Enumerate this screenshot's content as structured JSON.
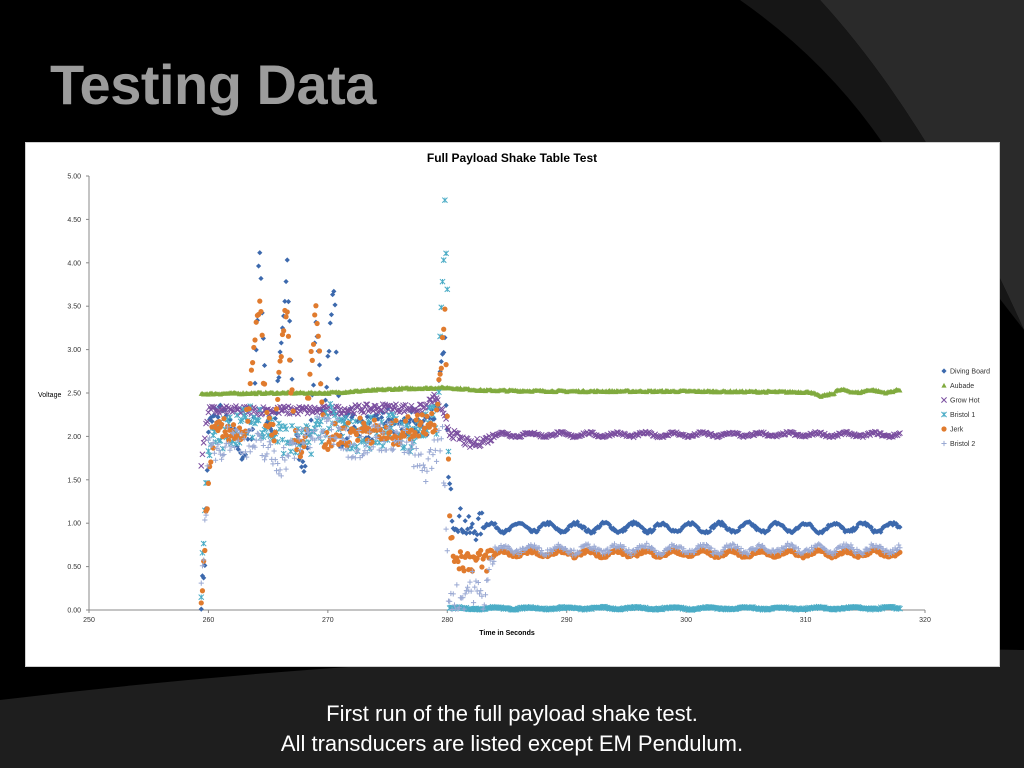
{
  "slide": {
    "title": "Testing Data",
    "caption_line1": "First run of the full payload shake test.",
    "caption_line2": "All transducers are listed except EM Pendulum."
  },
  "chart_data": {
    "type": "scatter",
    "title": "Full Payload Shake Table Test",
    "xlabel": "Time in Seconds",
    "ylabel": "Voltage",
    "xlim": [
      250,
      320
    ],
    "ylim": [
      0,
      5
    ],
    "xticks": [
      "250",
      "260",
      "270",
      "280",
      "290",
      "300",
      "310",
      "320"
    ],
    "yticks": [
      "0.00",
      "0.50",
      "1.00",
      "1.50",
      "2.00",
      "2.50",
      "3.00",
      "3.50",
      "4.00",
      "4.50",
      "5.00"
    ],
    "grid": false,
    "legend_position": "right",
    "series": [
      {
        "name": "Diving Board",
        "color": "#3c69ad",
        "marker": "diamond",
        "noise_chaotic": 0.15,
        "noise_steady": 0.02,
        "points": [
          [
            259.4,
            0.1
          ],
          [
            259.7,
            0.6
          ],
          [
            260,
            2.1
          ],
          [
            261,
            2.3
          ],
          [
            262,
            2.0
          ],
          [
            263,
            1.8
          ],
          [
            263.8,
            2.2
          ],
          [
            264.3,
            4.25
          ],
          [
            264.8,
            2.3
          ],
          [
            265.5,
            2.0
          ],
          [
            266.6,
            3.9
          ],
          [
            267.2,
            2.0
          ],
          [
            268,
            1.7
          ],
          [
            268.6,
            2.2
          ],
          [
            269,
            3.2
          ],
          [
            269.6,
            2.2
          ],
          [
            270.5,
            3.75
          ],
          [
            271,
            2.0
          ],
          [
            272,
            2.2
          ],
          [
            273,
            2.1
          ],
          [
            274,
            2.1
          ],
          [
            275,
            2.2
          ],
          [
            276,
            2.0
          ],
          [
            277,
            2.2
          ],
          [
            278,
            2.1
          ],
          [
            279,
            2.3
          ],
          [
            279.8,
            3.0
          ],
          [
            280.1,
            1.5
          ],
          [
            280.5,
            1.05
          ],
          [
            281,
            1.05
          ],
          [
            282,
            0.9
          ],
          [
            283,
            1.0
          ]
        ],
        "steady": {
          "start": 283,
          "end": 318,
          "mean": 0.95,
          "amplitude": 0.05,
          "period": 2.4
        }
      },
      {
        "name": "Aubade",
        "color": "#80aa3e",
        "marker": "triangle",
        "noise_chaotic": 0.01,
        "noise_steady": 0.01,
        "points": [
          [
            259.4,
            2.49
          ],
          [
            265,
            2.5
          ],
          [
            270,
            2.5
          ],
          [
            276,
            2.55
          ],
          [
            280,
            2.56
          ],
          [
            283,
            2.53
          ],
          [
            290,
            2.52
          ],
          [
            300,
            2.52
          ],
          [
            310.5,
            2.51
          ],
          [
            311.2,
            2.46
          ],
          [
            312.5,
            2.5
          ]
        ],
        "steady": {
          "start": 312.5,
          "end": 318,
          "mean": 2.52,
          "amplitude": 0.015,
          "period": 2.4
        }
      },
      {
        "name": "Grow Hot",
        "color": "#7a4e9f",
        "marker": "x",
        "noise_chaotic": 0.05,
        "noise_steady": 0.015,
        "points": [
          [
            259.4,
            1.7
          ],
          [
            260,
            2.3
          ],
          [
            265,
            2.3
          ],
          [
            270,
            2.3
          ],
          [
            275,
            2.33
          ],
          [
            278,
            2.32
          ],
          [
            279,
            2.45
          ],
          [
            279.8,
            2.2
          ],
          [
            280.2,
            2.05
          ],
          [
            282,
            1.9
          ],
          [
            283,
            1.95
          ],
          [
            284,
            2.0
          ]
        ],
        "steady": {
          "start": 284,
          "end": 318,
          "mean": 2.02,
          "amplitude": 0.02,
          "period": 2.4
        }
      },
      {
        "name": "Bristol 1",
        "color": "#4bacc6",
        "marker": "asterisk",
        "noise_chaotic": 0.2,
        "noise_steady": 0.01,
        "points": [
          [
            259.4,
            0.3
          ],
          [
            260,
            1.9
          ],
          [
            262,
            2.1
          ],
          [
            264.3,
            2.2
          ],
          [
            266,
            2.0
          ],
          [
            268,
            1.9
          ],
          [
            270,
            2.2
          ],
          [
            272,
            2.0
          ],
          [
            275,
            2.1
          ],
          [
            277,
            2.0
          ],
          [
            279.2,
            2.2
          ],
          [
            279.8,
            4.6
          ],
          [
            280.0,
            3.5
          ],
          [
            280.2,
            0.02
          ]
        ],
        "steady": {
          "start": 280.2,
          "end": 318,
          "mean": 0.02,
          "amplitude": 0.01,
          "period": 3
        }
      },
      {
        "name": "Jerk",
        "color": "#e07b2e",
        "marker": "circle",
        "noise_chaotic": 0.15,
        "noise_steady": 0.02,
        "points": [
          [
            259.4,
            0.1
          ],
          [
            259.8,
            1.0
          ],
          [
            260.3,
            2.0
          ],
          [
            262,
            2.1
          ],
          [
            263,
            1.9
          ],
          [
            264.3,
            3.6
          ],
          [
            264.8,
            2.2
          ],
          [
            265.5,
            2.0
          ],
          [
            266.5,
            3.5
          ],
          [
            267.2,
            2.0
          ],
          [
            268,
            1.8
          ],
          [
            269,
            3.55
          ],
          [
            269.7,
            2.0
          ],
          [
            271,
            2.0
          ],
          [
            273,
            2.1
          ],
          [
            275,
            2.0
          ],
          [
            277,
            2.1
          ],
          [
            279,
            2.2
          ],
          [
            279.8,
            3.35
          ],
          [
            280.3,
            0.7
          ],
          [
            281,
            0.6
          ],
          [
            283,
            0.55
          ],
          [
            284,
            0.65
          ]
        ],
        "steady": {
          "start": 284,
          "end": 318,
          "mean": 0.65,
          "amplitude": 0.03,
          "period": 2.4
        }
      },
      {
        "name": "Bristol 2",
        "color": "#9aa9d3",
        "marker": "plus",
        "noise_chaotic": 0.18,
        "noise_steady": 0.03,
        "points": [
          [
            259.4,
            0.2
          ],
          [
            260,
            1.8
          ],
          [
            262,
            2.0
          ],
          [
            264,
            1.9
          ],
          [
            266,
            1.7
          ],
          [
            268,
            2.0
          ],
          [
            270,
            2.1
          ],
          [
            272,
            1.9
          ],
          [
            274,
            2.0
          ],
          [
            276,
            2.0
          ],
          [
            278,
            1.6
          ],
          [
            279.6,
            2.0
          ],
          [
            280.1,
            0.2
          ],
          [
            281,
            0.1
          ],
          [
            282,
            0.3
          ],
          [
            283,
            0.1
          ],
          [
            284,
            0.7
          ]
        ],
        "steady": {
          "start": 284,
          "end": 318,
          "mean": 0.7,
          "amplitude": 0.04,
          "period": 2.4
        }
      }
    ]
  }
}
